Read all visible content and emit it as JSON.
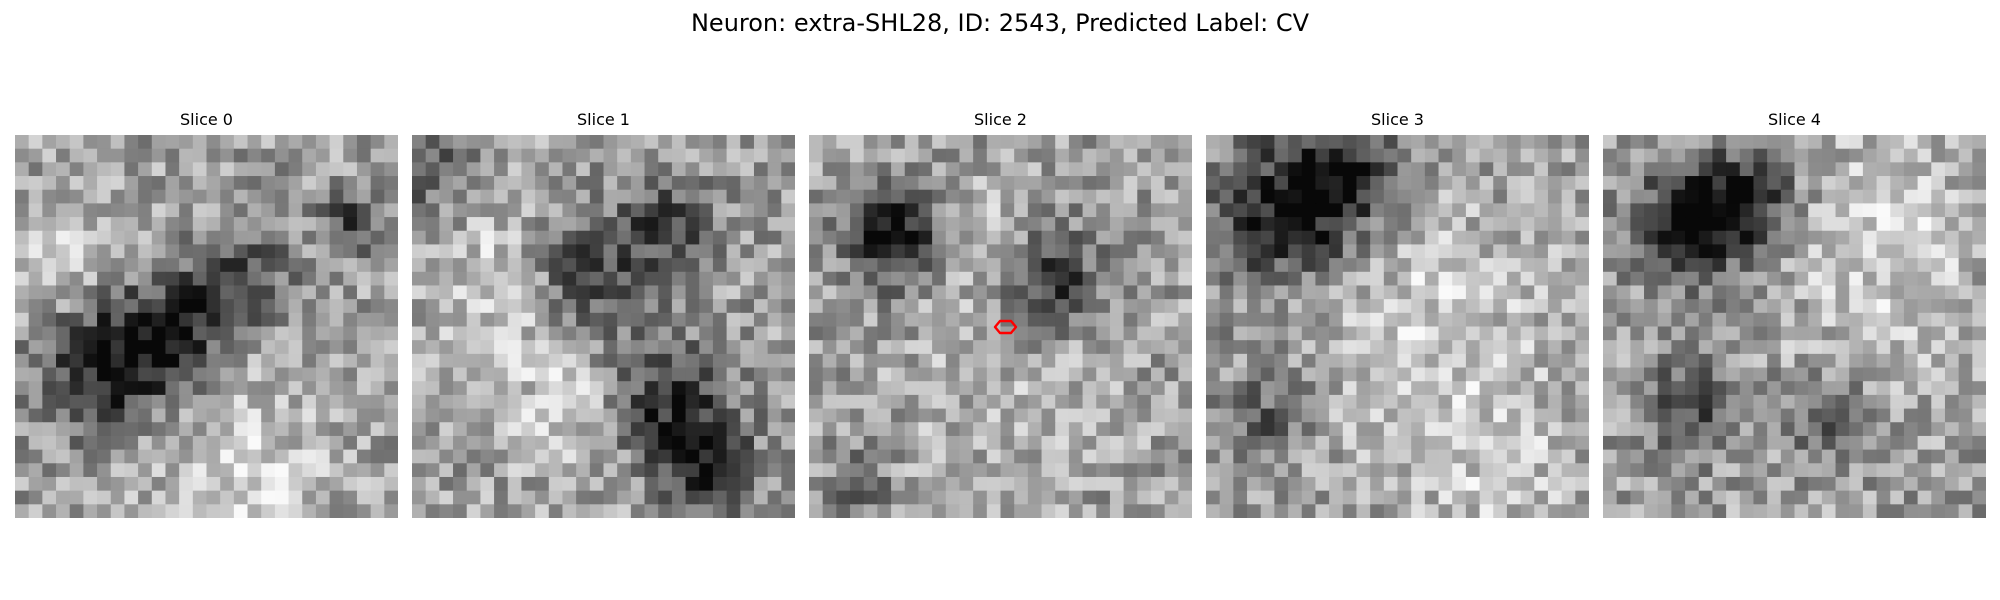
{
  "figure": {
    "title": "Neuron: extra-SHL28, ID: 2543, Predicted Label: CV"
  },
  "slices": [
    {
      "title": "Slice 0"
    },
    {
      "title": "Slice 1"
    },
    {
      "title": "Slice 2"
    },
    {
      "title": "Slice 3"
    },
    {
      "title": "Slice 4"
    }
  ],
  "marker": {
    "slice_index": 2,
    "color": "#ff0000"
  },
  "colors": {
    "background": "#ffffff",
    "colormap": "gray"
  }
}
